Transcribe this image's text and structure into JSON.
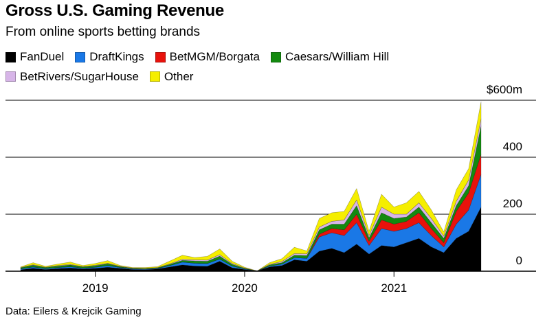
{
  "title": "Gross U.S. Gaming Revenue",
  "subtitle": "From online sports betting brands",
  "source": "Data: Eilers & Krejcik Gaming",
  "chart_data": {
    "type": "area",
    "stacked": true,
    "x": [
      "2018-07",
      "2018-08",
      "2018-09",
      "2018-10",
      "2018-11",
      "2018-12",
      "2019-01",
      "2019-02",
      "2019-03",
      "2019-04",
      "2019-05",
      "2019-06",
      "2019-07",
      "2019-08",
      "2019-09",
      "2019-10",
      "2019-11",
      "2019-12",
      "2020-01",
      "2020-02",
      "2020-03",
      "2020-04",
      "2020-05",
      "2020-06",
      "2020-07",
      "2020-08",
      "2020-09",
      "2020-10",
      "2020-11",
      "2020-12",
      "2021-01",
      "2021-02",
      "2021-03",
      "2021-04",
      "2021-05",
      "2021-06",
      "2021-07",
      "2021-08",
      "2021-09",
      "2021-10",
      "2021-11"
    ],
    "x_ticks": [
      "2019",
      "2020",
      "2021"
    ],
    "y_ticks": [
      "0",
      "200",
      "400",
      "$600m"
    ],
    "ylim": [
      0,
      600
    ],
    "grid": true,
    "legend_position": "top",
    "series": [
      {
        "name": "FanDuel",
        "color": "#000000",
        "values": [
          5,
          10,
          6,
          9,
          11,
          8,
          10,
          14,
          10,
          6,
          5,
          8,
          15,
          22,
          18,
          17,
          35,
          12,
          6,
          1,
          15,
          20,
          40,
          35,
          70,
          80,
          65,
          95,
          60,
          90,
          85,
          100,
          115,
          85,
          65,
          115,
          140,
          225,
          0,
          0,
          0
        ]
      },
      {
        "name": "DraftKings",
        "color": "#1a78e6",
        "values": [
          3,
          5,
          3,
          4,
          5,
          3,
          4,
          6,
          3,
          2,
          2,
          2,
          5,
          10,
          10,
          10,
          8,
          6,
          2,
          0,
          3,
          5,
          8,
          10,
          50,
          55,
          60,
          75,
          30,
          60,
          55,
          50,
          55,
          40,
          20,
          50,
          75,
          115,
          0,
          0,
          0
        ]
      },
      {
        "name": "BetMGM/Borgata",
        "color": "#e8120c",
        "values": [
          0,
          0,
          0,
          0,
          0,
          0,
          0,
          0,
          0,
          0,
          0,
          0,
          0,
          0,
          0,
          0,
          0,
          0,
          0,
          0,
          0,
          0,
          0,
          0,
          10,
          15,
          20,
          30,
          15,
          30,
          25,
          25,
          35,
          25,
          15,
          45,
          60,
          70,
          0,
          0,
          0
        ]
      },
      {
        "name": "Caesars/William Hill",
        "color": "#138a0f",
        "values": [
          4,
          6,
          4,
          5,
          6,
          4,
          5,
          6,
          3,
          2,
          2,
          2,
          4,
          6,
          8,
          8,
          10,
          6,
          2,
          0,
          4,
          5,
          8,
          10,
          15,
          15,
          20,
          30,
          12,
          25,
          20,
          15,
          20,
          20,
          15,
          20,
          25,
          100,
          0,
          0,
          0
        ]
      },
      {
        "name": "BetRivers/SugarHouse",
        "color": "#d7b5e8",
        "values": [
          1,
          2,
          1,
          2,
          2,
          1,
          2,
          2,
          1,
          1,
          1,
          1,
          2,
          4,
          4,
          4,
          5,
          3,
          1,
          0,
          2,
          4,
          6,
          6,
          10,
          10,
          15,
          20,
          8,
          20,
          15,
          10,
          15,
          15,
          8,
          15,
          20,
          25,
          0,
          0,
          0
        ]
      },
      {
        "name": "Other",
        "color": "#f5ee00",
        "values": [
          2,
          7,
          3,
          5,
          8,
          4,
          6,
          9,
          3,
          2,
          3,
          3,
          10,
          14,
          8,
          13,
          20,
          8,
          3,
          0,
          6,
          10,
          22,
          10,
          30,
          30,
          30,
          40,
          15,
          45,
          25,
          40,
          40,
          30,
          15,
          40,
          40,
          60,
          0,
          0,
          0
        ]
      }
    ]
  }
}
